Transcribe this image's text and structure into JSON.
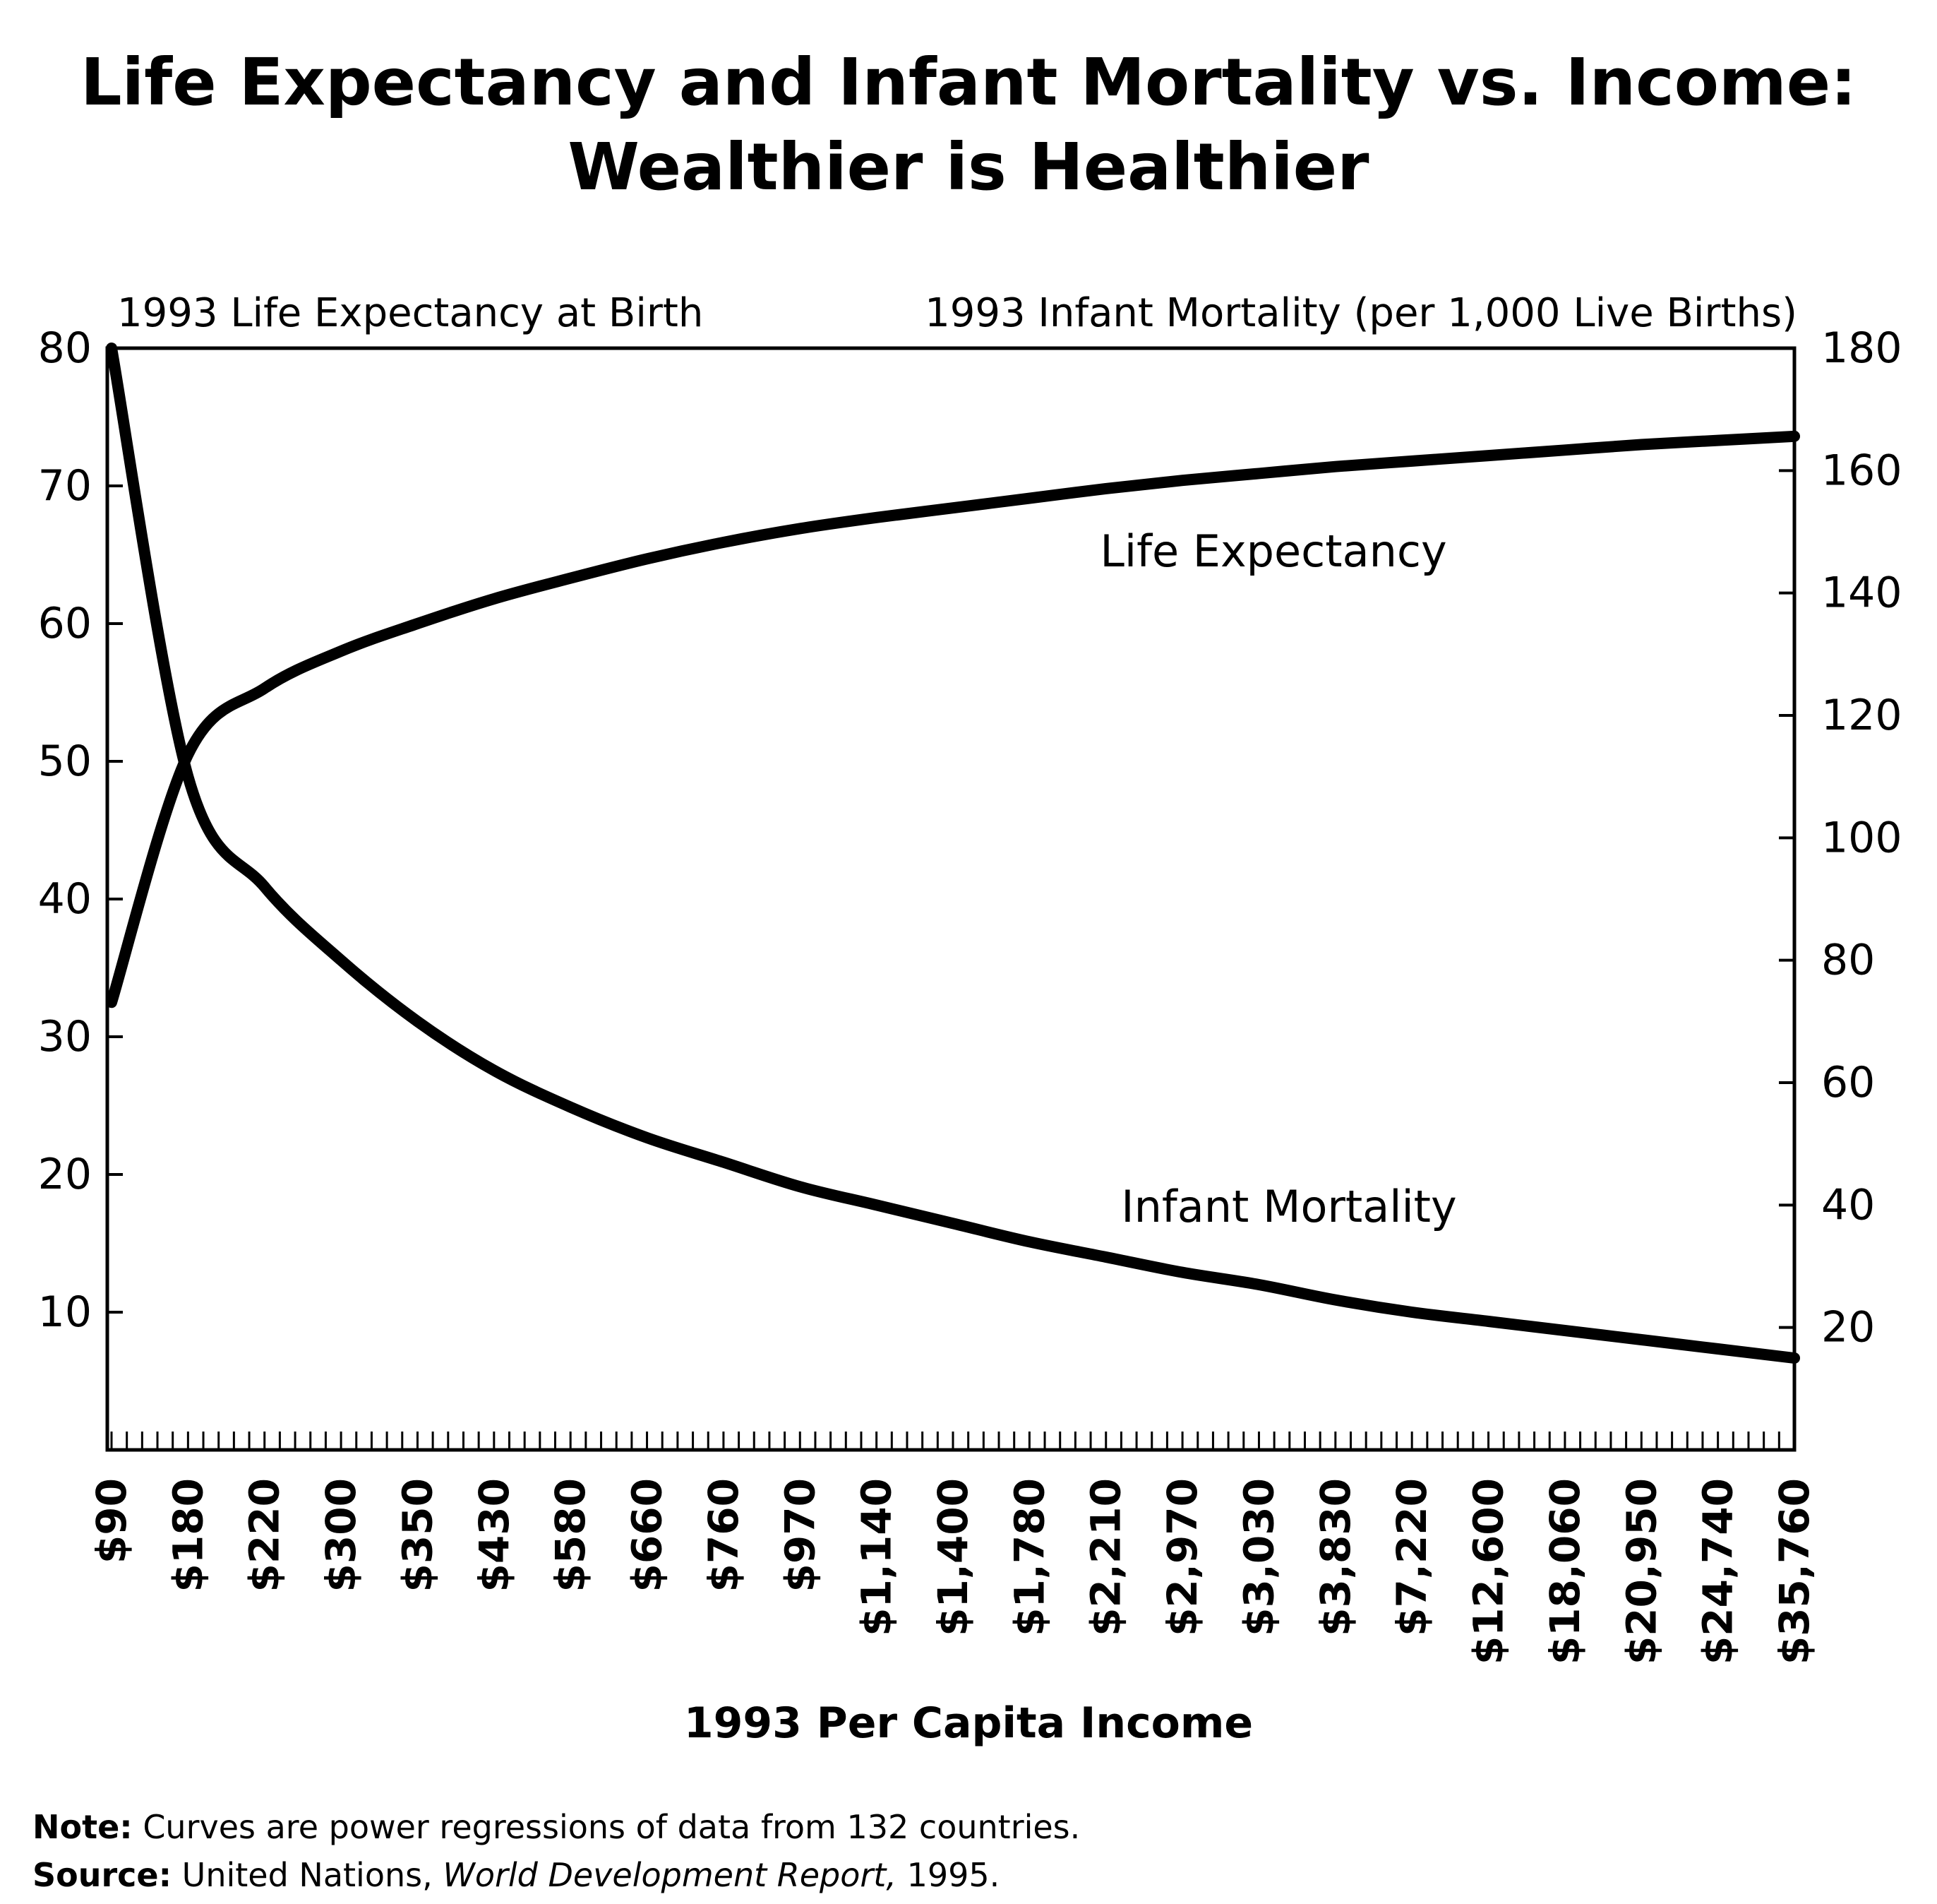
{
  "title_line1": "Life Expectancy and Infant Mortality vs. Income:",
  "title_line2": "Wealthier is Healthier",
  "note": {
    "label": "Note:",
    "text": "Curves are power regressions of data from 132 countries."
  },
  "source": {
    "label": "Source:",
    "text_before": "United Nations, ",
    "italic": "World Development Report,",
    "text_after": " 1995."
  },
  "chart_data": {
    "type": "line",
    "title": "Life Expectancy and Infant Mortality vs. Income: Wealthier is Healthier",
    "xlabel": "1993 Per Capita Income",
    "ylabel_left": "1993 Life Expectancy at Birth",
    "ylabel_right": "1993 Infant Mortality (per 1,000 Live Births)",
    "categories": [
      "$90",
      "$180",
      "$220",
      "$300",
      "$350",
      "$430",
      "$580",
      "$660",
      "$760",
      "$970",
      "$1,140",
      "$1,400",
      "$1,780",
      "$2,210",
      "$2,970",
      "$3,030",
      "$3,830",
      "$7,220",
      "$12,600",
      "$18,060",
      "$20,950",
      "$24,740",
      "$35,760"
    ],
    "ylim_left": [
      0,
      80
    ],
    "yticks_left": [
      10,
      20,
      30,
      40,
      50,
      60,
      70,
      80
    ],
    "ylim_right": [
      0,
      180
    ],
    "yticks_right": [
      20,
      40,
      60,
      80,
      100,
      120,
      140,
      160,
      180
    ],
    "grid": false,
    "series": [
      {
        "name": "Life Expectancy",
        "axis": "left",
        "values": [
          32.5,
          50.5,
          55.3,
          58.0,
          60.0,
          61.8,
          63.3,
          64.7,
          65.9,
          66.9,
          67.7,
          68.4,
          69.1,
          69.8,
          70.4,
          70.9,
          71.4,
          71.8,
          72.2,
          72.6,
          73.0,
          73.3,
          73.6
        ]
      },
      {
        "name": "Infant Mortality",
        "axis": "right",
        "values": [
          180,
          110,
          92,
          80,
          70,
          62,
          56,
          51,
          47,
          43,
          40,
          37,
          34,
          31.5,
          29,
          27,
          24.5,
          22.5,
          21,
          19.5,
          18,
          16.5,
          15
        ]
      }
    ],
    "annotations": [
      "Life Expectancy",
      "Infant Mortality"
    ]
  }
}
